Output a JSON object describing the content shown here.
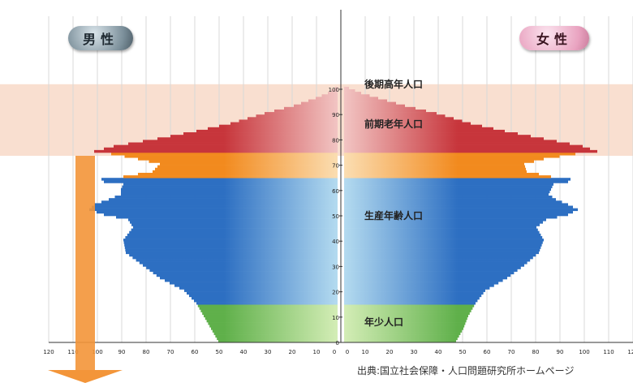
{
  "chart_data": {
    "type": "bar",
    "orientation": "horizontal-pyramid",
    "age_ticks": [
      0,
      10,
      20,
      30,
      40,
      50,
      60,
      70,
      80,
      90,
      100
    ],
    "x_ticks": [
      120,
      110,
      100,
      90,
      80,
      70,
      60,
      50,
      40,
      30,
      20,
      10,
      0
    ],
    "x_range": [
      0,
      120
    ],
    "y_range": [
      0,
      102
    ],
    "grid": true,
    "sexes": {
      "male": "男性",
      "female": "女性"
    },
    "segments": [
      {
        "name": "後期高年人口",
        "age_from": 75,
        "age_to": 101,
        "color": "#c7353b"
      },
      {
        "name": "前期老年人口",
        "age_from": 65,
        "age_to": 75,
        "color": "#f28a1e"
      },
      {
        "name": "生産年齢人口",
        "age_from": 15,
        "age_to": 65,
        "color": "#2d6fc2"
      },
      {
        "name": "年少人口",
        "age_from": 0,
        "age_to": 15,
        "color": "#5fb04a"
      }
    ],
    "age_profile": [
      [
        0,
        49
      ],
      [
        5,
        52
      ],
      [
        10,
        55
      ],
      [
        15,
        58
      ],
      [
        20,
        63
      ],
      [
        25,
        73
      ],
      [
        30,
        80
      ],
      [
        35,
        87
      ],
      [
        40,
        88
      ],
      [
        45,
        84
      ],
      [
        48,
        86
      ],
      [
        50,
        96
      ],
      [
        52,
        102
      ],
      [
        54,
        100
      ],
      [
        56,
        94
      ],
      [
        58,
        89
      ],
      [
        60,
        89
      ],
      [
        62,
        88
      ],
      [
        63,
        96
      ],
      [
        64,
        97
      ],
      [
        65,
        88
      ],
      [
        67,
        76
      ],
      [
        70,
        73
      ],
      [
        72,
        82
      ],
      [
        74,
        93
      ],
      [
        75,
        100
      ],
      [
        77,
        92
      ],
      [
        80,
        74
      ],
      [
        83,
        58
      ],
      [
        86,
        44
      ],
      [
        90,
        30
      ],
      [
        93,
        18
      ],
      [
        96,
        9
      ],
      [
        98,
        4
      ],
      [
        100,
        1
      ],
      [
        101,
        0
      ]
    ],
    "female_profile": [
      [
        0,
        46
      ],
      [
        5,
        49
      ],
      [
        10,
        51
      ],
      [
        15,
        54
      ],
      [
        20,
        58
      ],
      [
        25,
        67
      ],
      [
        30,
        74
      ],
      [
        35,
        80
      ],
      [
        40,
        82
      ],
      [
        45,
        79
      ],
      [
        48,
        83
      ],
      [
        50,
        92
      ],
      [
        52,
        96
      ],
      [
        54,
        92
      ],
      [
        56,
        87
      ],
      [
        58,
        84
      ],
      [
        60,
        85
      ],
      [
        62,
        86
      ],
      [
        63,
        92
      ],
      [
        64,
        93
      ],
      [
        65,
        85
      ],
      [
        67,
        75
      ],
      [
        70,
        74
      ],
      [
        72,
        82
      ],
      [
        74,
        95
      ],
      [
        75,
        104
      ],
      [
        77,
        98
      ],
      [
        80,
        82
      ],
      [
        83,
        66
      ],
      [
        86,
        52
      ],
      [
        90,
        38
      ],
      [
        93,
        25
      ],
      [
        96,
        14
      ],
      [
        98,
        7
      ],
      [
        100,
        2
      ],
      [
        101,
        0
      ]
    ]
  },
  "labels": {
    "male": "男性",
    "female": "女性",
    "source": "出典:国立社会保障・人口問題研究所ホームページ"
  },
  "colors": {
    "highlight_band": "#f9dfd0",
    "arrow": "#f39539"
  }
}
